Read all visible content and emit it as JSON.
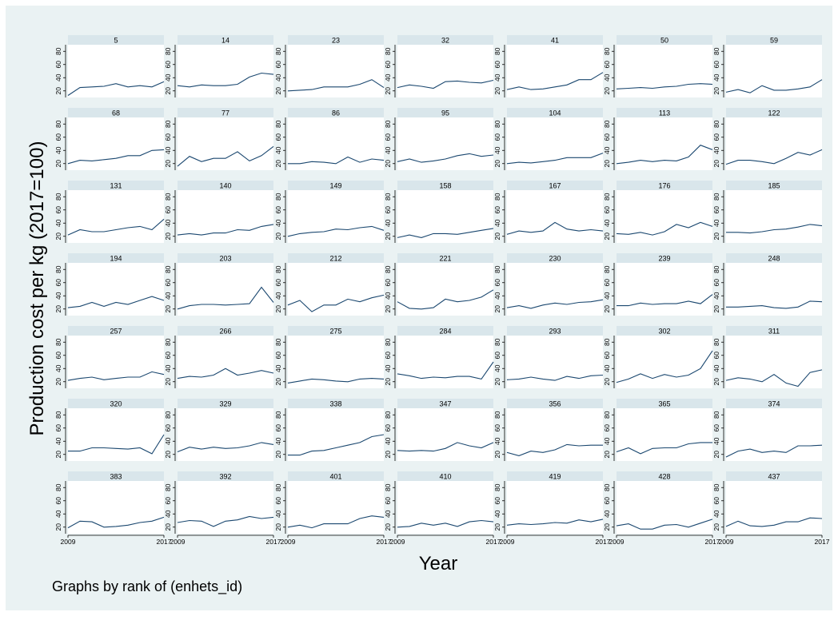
{
  "chart_data": {
    "type": "line",
    "layout": "small-multiples",
    "ylabel": "Production cost per kg (2017=100)",
    "xlabel": "Year",
    "note": "Graphs by rank of (enhets_id)",
    "x": [
      2009,
      2010,
      2011,
      2012,
      2013,
      2014,
      2015,
      2016,
      2017
    ],
    "xticks": [
      "2009",
      "2017"
    ],
    "yticks": [
      20,
      40,
      60,
      80
    ],
    "ylim": [
      10,
      90
    ],
    "colors": {
      "line": "#1a476f",
      "panel_header": "#d9e6eb",
      "outer_background": "#eaf2f3",
      "plot_background": "#ffffff"
    },
    "panels": [
      {
        "label": "5",
        "values": [
          13,
          25,
          26,
          27,
          31,
          26,
          28,
          26,
          34
        ]
      },
      {
        "label": "14",
        "values": [
          28,
          26,
          29,
          28,
          28,
          30,
          41,
          47,
          45
        ]
      },
      {
        "label": "23",
        "values": [
          20,
          21,
          22,
          26,
          26,
          26,
          30,
          37,
          25
        ]
      },
      {
        "label": "32",
        "values": [
          25,
          29,
          27,
          24,
          34,
          35,
          33,
          32,
          36
        ]
      },
      {
        "label": "41",
        "values": [
          22,
          26,
          22,
          23,
          26,
          29,
          37,
          37,
          48
        ]
      },
      {
        "label": "50",
        "values": [
          23,
          24,
          25,
          24,
          26,
          27,
          30,
          31,
          30
        ]
      },
      {
        "label": "59",
        "values": [
          18,
          22,
          17,
          28,
          21,
          21,
          23,
          26,
          37
        ]
      },
      {
        "label": "68",
        "values": [
          20,
          25,
          24,
          26,
          28,
          32,
          32,
          40,
          41
        ]
      },
      {
        "label": "77",
        "values": [
          16,
          31,
          23,
          28,
          28,
          38,
          24,
          32,
          46
        ]
      },
      {
        "label": "86",
        "values": [
          20,
          20,
          23,
          22,
          20,
          30,
          22,
          27,
          25
        ]
      },
      {
        "label": "95",
        "values": [
          23,
          27,
          22,
          24,
          27,
          32,
          35,
          31,
          33
        ]
      },
      {
        "label": "104",
        "values": [
          20,
          22,
          21,
          23,
          25,
          29,
          29,
          29,
          36
        ]
      },
      {
        "label": "113",
        "values": [
          20,
          22,
          25,
          23,
          25,
          24,
          30,
          48,
          41
        ]
      },
      {
        "label": "122",
        "values": [
          19,
          25,
          25,
          23,
          20,
          28,
          37,
          33,
          41
        ]
      },
      {
        "label": "131",
        "values": [
          22,
          30,
          27,
          27,
          30,
          33,
          35,
          30,
          46
        ]
      },
      {
        "label": "140",
        "values": [
          22,
          24,
          22,
          25,
          25,
          30,
          29,
          35,
          38
        ]
      },
      {
        "label": "149",
        "values": [
          20,
          24,
          26,
          27,
          31,
          30,
          33,
          35,
          29
        ]
      },
      {
        "label": "158",
        "values": [
          18,
          22,
          18,
          24,
          24,
          23,
          26,
          29,
          32
        ]
      },
      {
        "label": "167",
        "values": [
          23,
          28,
          26,
          28,
          41,
          31,
          28,
          30,
          28
        ]
      },
      {
        "label": "176",
        "values": [
          24,
          23,
          26,
          22,
          27,
          38,
          33,
          41,
          35
        ]
      },
      {
        "label": "185",
        "values": [
          26,
          26,
          25,
          27,
          30,
          31,
          34,
          38,
          36
        ]
      },
      {
        "label": "194",
        "values": [
          22,
          24,
          30,
          24,
          30,
          27,
          33,
          39,
          33
        ]
      },
      {
        "label": "203",
        "values": [
          20,
          25,
          27,
          27,
          26,
          27,
          28,
          53,
          30
        ]
      },
      {
        "label": "212",
        "values": [
          26,
          33,
          16,
          26,
          26,
          35,
          31,
          37,
          41
        ]
      },
      {
        "label": "221",
        "values": [
          31,
          21,
          20,
          22,
          35,
          31,
          33,
          38,
          49
        ]
      },
      {
        "label": "230",
        "values": [
          22,
          25,
          21,
          26,
          29,
          27,
          30,
          31,
          34
        ]
      },
      {
        "label": "239",
        "values": [
          25,
          25,
          29,
          27,
          28,
          28,
          32,
          28,
          42
        ]
      },
      {
        "label": "248",
        "values": [
          23,
          23,
          24,
          25,
          22,
          21,
          23,
          32,
          31
        ]
      },
      {
        "label": "257",
        "values": [
          22,
          25,
          27,
          23,
          25,
          27,
          27,
          35,
          31
        ]
      },
      {
        "label": "266",
        "values": [
          25,
          28,
          27,
          30,
          40,
          30,
          33,
          37,
          33
        ]
      },
      {
        "label": "275",
        "values": [
          18,
          21,
          24,
          23,
          21,
          20,
          24,
          25,
          24
        ]
      },
      {
        "label": "284",
        "values": [
          32,
          29,
          25,
          27,
          26,
          28,
          28,
          24,
          50
        ]
      },
      {
        "label": "293",
        "values": [
          23,
          24,
          27,
          24,
          22,
          28,
          25,
          29,
          30
        ]
      },
      {
        "label": "302",
        "values": [
          19,
          24,
          32,
          25,
          31,
          27,
          30,
          40,
          67
        ]
      },
      {
        "label": "311",
        "values": [
          22,
          26,
          24,
          20,
          31,
          18,
          13,
          34,
          38
        ]
      },
      {
        "label": "320",
        "values": [
          25,
          25,
          30,
          30,
          29,
          28,
          30,
          21,
          50
        ]
      },
      {
        "label": "329",
        "values": [
          24,
          31,
          28,
          31,
          29,
          30,
          33,
          38,
          35
        ]
      },
      {
        "label": "338",
        "values": [
          19,
          19,
          25,
          26,
          30,
          34,
          38,
          47,
          50
        ]
      },
      {
        "label": "347",
        "values": [
          26,
          25,
          26,
          25,
          29,
          38,
          33,
          30,
          38
        ]
      },
      {
        "label": "356",
        "values": [
          23,
          18,
          25,
          23,
          27,
          35,
          33,
          34,
          34
        ]
      },
      {
        "label": "365",
        "values": [
          24,
          30,
          21,
          29,
          30,
          30,
          36,
          38,
          38
        ]
      },
      {
        "label": "374",
        "values": [
          16,
          25,
          28,
          23,
          25,
          23,
          33,
          33,
          34
        ]
      },
      {
        "label": "383",
        "values": [
          19,
          29,
          28,
          20,
          21,
          23,
          27,
          29,
          35
        ]
      },
      {
        "label": "392",
        "values": [
          27,
          30,
          29,
          21,
          29,
          31,
          36,
          33,
          35
        ]
      },
      {
        "label": "401",
        "values": [
          20,
          23,
          19,
          25,
          25,
          25,
          33,
          37,
          35
        ]
      },
      {
        "label": "410",
        "values": [
          20,
          21,
          26,
          23,
          26,
          21,
          28,
          30,
          28
        ]
      },
      {
        "label": "419",
        "values": [
          23,
          25,
          24,
          25,
          27,
          26,
          31,
          28,
          32
        ]
      },
      {
        "label": "428",
        "values": [
          22,
          25,
          17,
          17,
          23,
          24,
          20,
          26,
          32
        ]
      },
      {
        "label": "437",
        "values": [
          21,
          29,
          22,
          21,
          23,
          28,
          28,
          34,
          33
        ]
      }
    ]
  }
}
